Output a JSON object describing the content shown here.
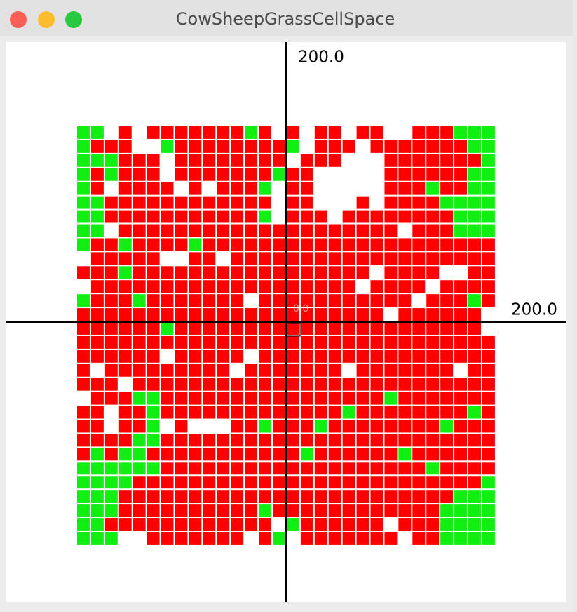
{
  "window": {
    "title": "CowSheepGrassCellSpace"
  },
  "axes": {
    "y_label": "200.0",
    "x_label": "200.0",
    "origin_label": "0.0"
  },
  "cell_colors": {
    "R": "#ff0000",
    "G": "#11ee11"
  },
  "cells": [
    "GGWRWRRRRRRRGRWRWRRWRRWWRRRGGG",
    "GRRRWWGRRRRRRRRGWRRRWRRRRRRRGG",
    "GGGRRRWRRRRRRRRWRRRWWWRRRRRRRG",
    "GRGRRRWRRRRRRRGRRWWWWWRRRRRRGG",
    "GRWRRRRWRWRRRGWRRWWWWWRRRGRRGG",
    "GGRRRRRRRRRRRRWRRWWWRWRRRRGGGG",
    "GGRRRRRRRRRRRGWRRRWRRRRRRRRGGG",
    "GGWRRRRRRRRRRRRRRRRRRRRWRRRGGG",
    "GRRGRRRRGRRRRRRRRRRRRRRRRRRRRR",
    "WRRRRRWWRRWRRRRRRRRRRRRRRRRRRR",
    "RRRGRRRRRRRRRRRRRRRRRWRRRRWWRR",
    "WRRRRRRRRRRRRRRRRRRRWRRRRWRRRR",
    "GRRRGRRRRRRRWRRRRRRRRRRRWRRRGR",
    "RRRRRRRRRRRRRRRRRRRRRRWRRRRRRW",
    "RRRRRRGRRRRRRRRRRRRRRRRRRRRRRW",
    "RRRRRRRRRRRRRRRRRRRRRRRRRRRRRR",
    "RRRRRRWRRRRRWRRRRRRRRRRRRRRRRR",
    "RWRRRRRRRRRWRRRRRRRWRRRRRRRWRR",
    "RRRWRRRRRRRRRRRRRRRRRRRRRRRRRR",
    "WRRRGGRRRRRRRRRRRRRRRRGRRRRRRR",
    "RRWRRGRRRRRRRRRRRRRGRRRRRRRRGR",
    "RRWRRGWRWWWRRGRRRGRRRRRRRRGRRR",
    "RRRRGGRRRRRRRRRRRRRRRRRRRRRRRR",
    "RGRGGRRRRRRRRRRRGRRRRRRGRRRRRR",
    "GGGGGGRRRRRRRRRRRRRRRRRRRGRRRR",
    "GGGGRRRRRRRRRRRRRRRRRRRRRRRRRG",
    "GGGRRRRRRRRRRRRRRRRRRRRRRRRGGG",
    "GGGRRRRRRRRRRGRRRRRRRRRRRRGGGG",
    "GGRRRRRRRRRRRRWGRRRRRRWRRRGGGG",
    "GGGWWRRRRRRRWRGWRRRRRRRWRRGGGG"
  ]
}
